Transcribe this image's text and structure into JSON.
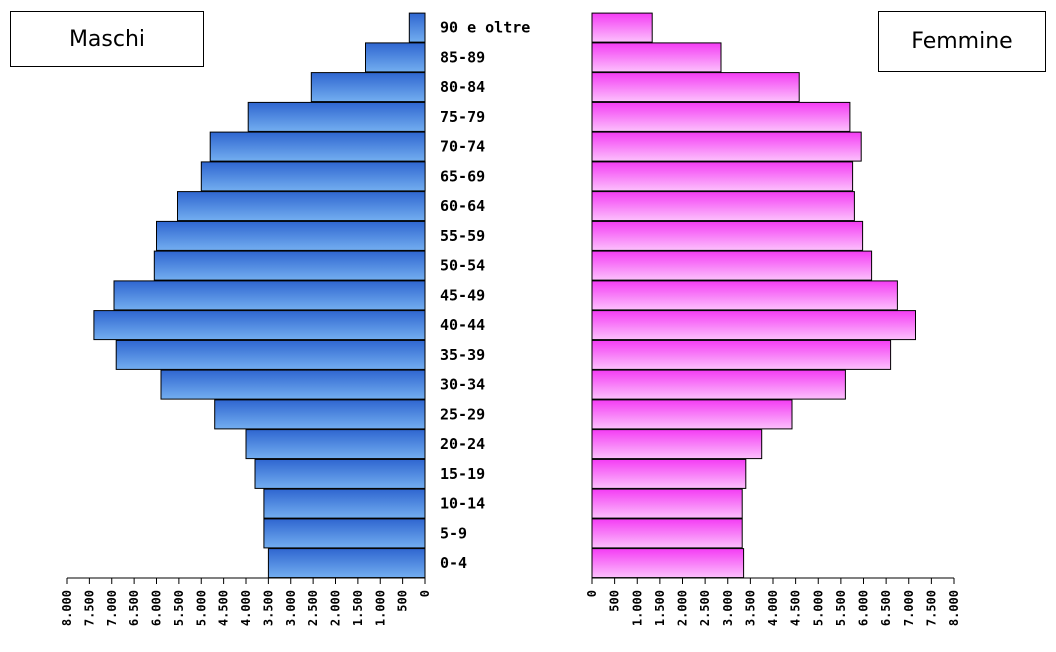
{
  "chart_data": {
    "type": "bar",
    "orientation": "horizontal",
    "title": "",
    "categories": [
      "0-4",
      "5-9",
      "10-14",
      "15-19",
      "20-24",
      "25-29",
      "30-34",
      "35-39",
      "40-44",
      "45-49",
      "50-54",
      "55-59",
      "60-64",
      "65-69",
      "70-74",
      "75-79",
      "80-84",
      "85-89",
      "90 e oltre"
    ],
    "series": [
      {
        "name": "Maschi",
        "color": "#3a7de0",
        "values": [
          3500,
          3600,
          3600,
          3800,
          4000,
          4700,
          5900,
          6900,
          7400,
          6950,
          6050,
          6000,
          5530,
          5000,
          4800,
          3950,
          2540,
          1330,
          350
        ]
      },
      {
        "name": "Femmine",
        "color": "#f855f8",
        "values": [
          3350,
          3320,
          3320,
          3400,
          3750,
          4420,
          5600,
          6600,
          7150,
          6750,
          6180,
          5980,
          5800,
          5760,
          5950,
          5700,
          4580,
          2850,
          1330
        ]
      }
    ],
    "xlim_males": [
      0,
      8000
    ],
    "xlim_females": [
      0,
      8000
    ],
    "males_ticks": [
      "8.000",
      "7.500",
      "7.000",
      "6.500",
      "6.000",
      "5.500",
      "5.000",
      "4.500",
      "4.000",
      "3.500",
      "3.000",
      "2.500",
      "2.000",
      "1.500",
      "1.000",
      "500",
      "0"
    ],
    "females_ticks": [
      "0",
      "500",
      "1.000",
      "1.500",
      "2.000",
      "2.500",
      "3.000",
      "3.500",
      "4.000",
      "4.500",
      "5.000",
      "5.500",
      "6.000",
      "6.500",
      "7.000",
      "7.500",
      "8.000"
    ],
    "grid": false
  },
  "legend": {
    "males_label": "Maschi",
    "females_label": "Femmine"
  }
}
